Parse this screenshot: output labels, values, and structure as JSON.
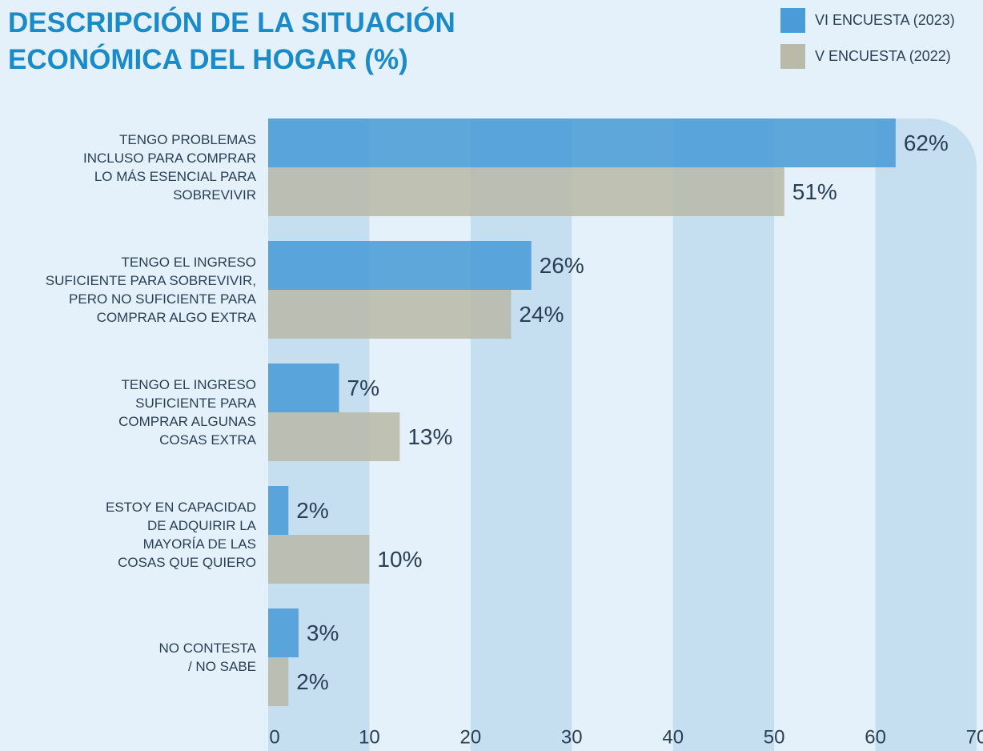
{
  "chart_data": {
    "type": "barh",
    "title": "DESCRIPCIÓN DE LA SITUACIÓN\nECONÓMICA DEL HOGAR (%)",
    "categories": [
      "TENGO PROBLEMAS\nINCLUSO PARA COMPRAR\nLO MÁS ESENCIAL PARA\nSOBREVIVIR",
      "TENGO EL INGRESO\nSUFICIENTE PARA SOBREVIVIR,\nPERO NO SUFICIENTE PARA\nCOMPRAR ALGO EXTRA",
      "TENGO EL INGRESO\nSUFICIENTE PARA\nCOMPRAR ALGUNAS\nCOSAS EXTRA",
      "ESTOY EN CAPACIDAD\nDE ADQUIRIR LA\nMAYORÍA DE LAS\nCOSAS QUE QUIERO",
      "NO CONTESTA\n/ NO SABE"
    ],
    "series": [
      {
        "name": "VI ENCUESTA (2023)",
        "color": "#4a9cd6",
        "values": [
          62,
          26,
          7,
          2,
          3
        ],
        "value_labels": [
          "62%",
          "26%",
          "7%",
          "2%",
          "3%"
        ]
      },
      {
        "name": "V ENCUESTA (2022)",
        "color": "#b9baa8",
        "values": [
          51,
          24,
          13,
          10,
          2
        ],
        "value_labels": [
          "51%",
          "24%",
          "13%",
          "10%",
          "2%"
        ]
      }
    ],
    "xlim": [
      0,
      70
    ],
    "xticks": [
      0,
      10,
      20,
      30,
      40,
      50,
      60,
      70
    ],
    "legend": "top-right"
  }
}
